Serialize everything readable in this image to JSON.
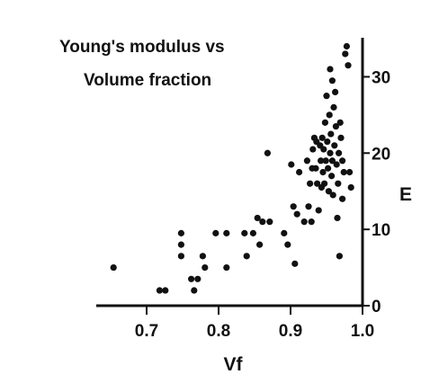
{
  "chart_data": {
    "type": "scatter",
    "title_lines": [
      "Young's modulus vs",
      "Volume fraction"
    ],
    "xlabel": "Vf",
    "ylabel": "E",
    "xlim": [
      0.63,
      1.0
    ],
    "ylim": [
      0,
      35
    ],
    "x_ticks": [
      0.7,
      0.8,
      0.9,
      1.0
    ],
    "x_tick_labels": [
      "0.7",
      "0.8",
      "0.9",
      "1.0"
    ],
    "y_ticks": [
      0,
      10,
      20,
      30
    ],
    "y_tick_labels": [
      "0",
      "10",
      "20",
      "30"
    ],
    "y_axis_side": "right",
    "grid": false,
    "marker_color": "#111111",
    "points": [
      [
        0.654,
        5
      ],
      [
        0.718,
        2
      ],
      [
        0.726,
        2
      ],
      [
        0.748,
        9.5
      ],
      [
        0.748,
        8
      ],
      [
        0.748,
        6.5
      ],
      [
        0.762,
        3.5
      ],
      [
        0.766,
        2
      ],
      [
        0.771,
        3.5
      ],
      [
        0.778,
        6.5
      ],
      [
        0.781,
        5
      ],
      [
        0.796,
        9.5
      ],
      [
        0.811,
        9.5
      ],
      [
        0.811,
        5
      ],
      [
        0.836,
        9.5
      ],
      [
        0.839,
        6.5
      ],
      [
        0.848,
        9.5
      ],
      [
        0.854,
        11.5
      ],
      [
        0.857,
        8
      ],
      [
        0.861,
        11
      ],
      [
        0.868,
        20
      ],
      [
        0.871,
        11
      ],
      [
        0.891,
        9.5
      ],
      [
        0.896,
        8
      ],
      [
        0.901,
        18.5
      ],
      [
        0.904,
        13
      ],
      [
        0.906,
        5.5
      ],
      [
        0.909,
        12
      ],
      [
        0.912,
        17.5
      ],
      [
        0.919,
        11
      ],
      [
        0.923,
        19
      ],
      [
        0.925,
        13
      ],
      [
        0.927,
        16
      ],
      [
        0.929,
        11
      ],
      [
        0.931,
        20.5
      ],
      [
        0.933,
        22
      ],
      [
        0.935,
        18
      ],
      [
        0.937,
        16
      ],
      [
        0.939,
        12.5
      ],
      [
        0.941,
        21
      ],
      [
        0.942,
        19
      ],
      [
        0.943,
        15.5
      ],
      [
        0.944,
        22
      ],
      [
        0.945,
        17.5
      ],
      [
        0.946,
        20.5
      ],
      [
        0.947,
        16
      ],
      [
        0.948,
        24
      ],
      [
        0.949,
        19
      ],
      [
        0.95,
        27.5
      ],
      [
        0.951,
        21.5
      ],
      [
        0.952,
        18
      ],
      [
        0.953,
        15
      ],
      [
        0.954,
        25
      ],
      [
        0.955,
        20
      ],
      [
        0.956,
        22.5
      ],
      [
        0.957,
        17
      ],
      [
        0.958,
        19
      ],
      [
        0.959,
        14.5
      ],
      [
        0.96,
        26
      ],
      [
        0.961,
        21
      ],
      [
        0.962,
        28
      ],
      [
        0.963,
        23.5
      ],
      [
        0.964,
        18.5
      ],
      [
        0.965,
        11.5
      ],
      [
        0.966,
        16
      ],
      [
        0.967,
        20
      ],
      [
        0.968,
        6.5
      ],
      [
        0.969,
        24
      ],
      [
        0.97,
        22
      ],
      [
        0.972,
        19
      ],
      [
        0.974,
        17.5
      ],
      [
        0.976,
        33
      ],
      [
        0.978,
        34
      ],
      [
        0.98,
        31.5
      ],
      [
        0.982,
        17.5
      ],
      [
        0.984,
        15.5
      ],
      [
        0.972,
        14
      ],
      [
        0.955,
        31
      ],
      [
        0.958,
        29.5
      ],
      [
        0.936,
        21.5
      ],
      [
        0.93,
        18
      ]
    ]
  }
}
